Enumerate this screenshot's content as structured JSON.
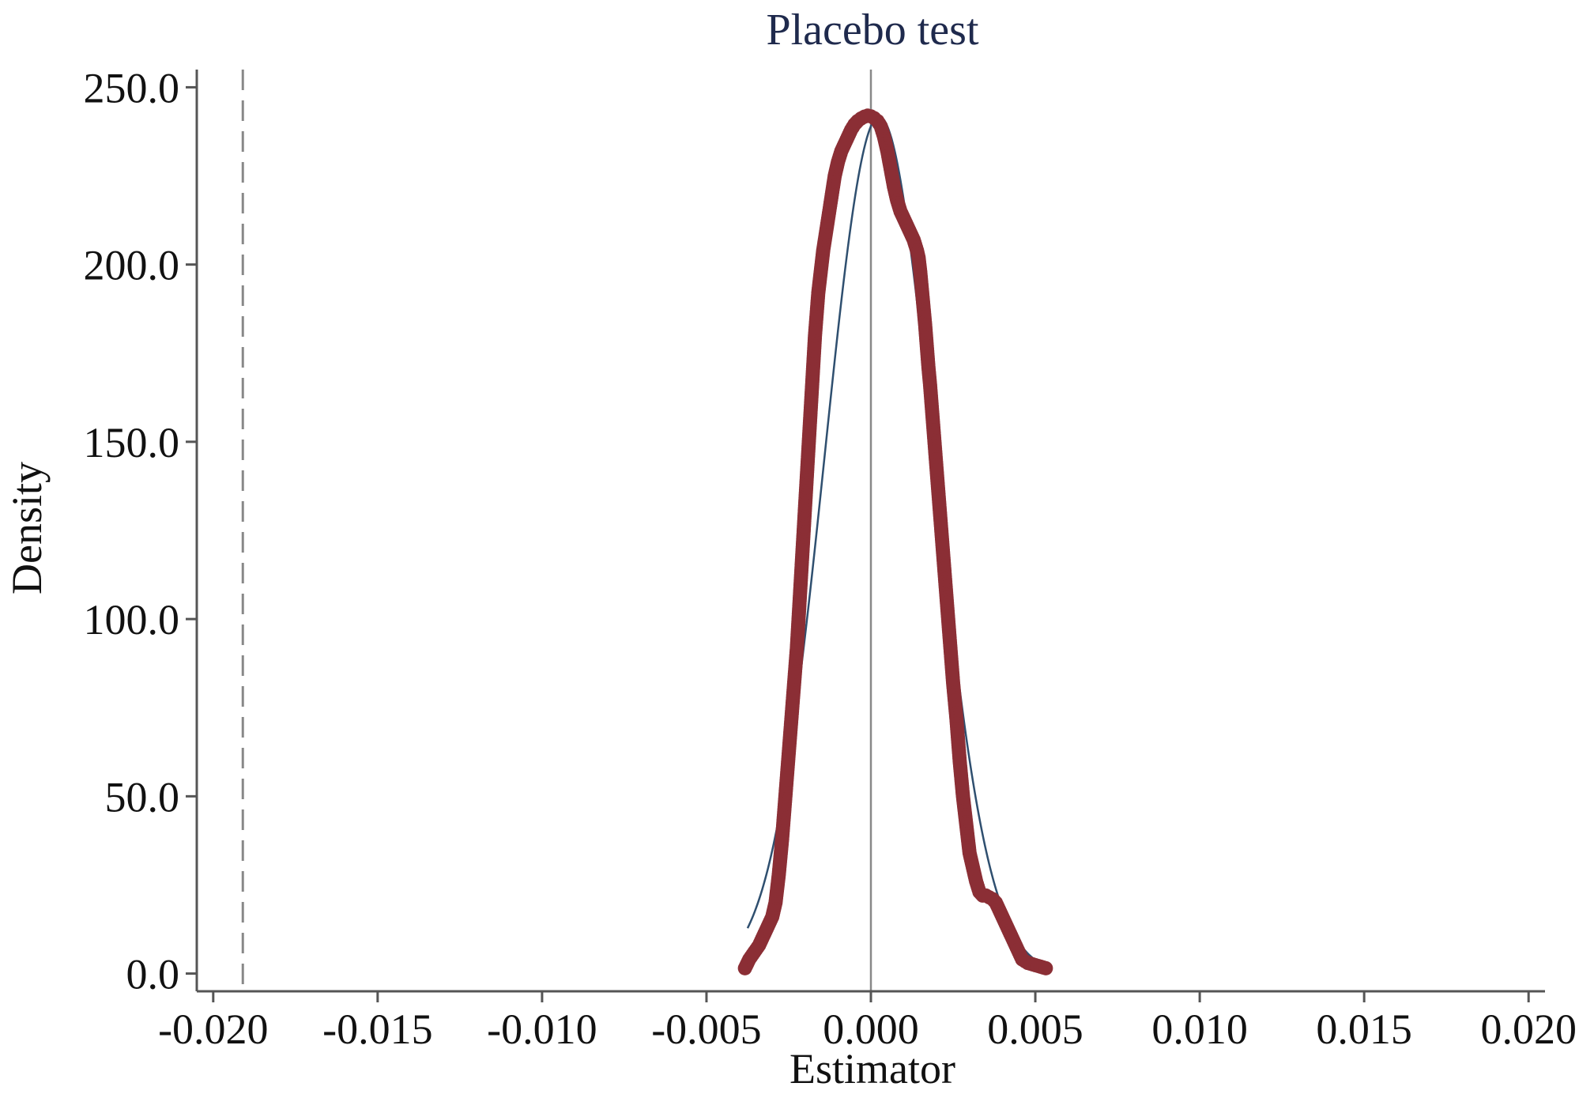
{
  "chart_data": {
    "type": "scatter",
    "title": "Placebo test",
    "xlabel": "Estimator",
    "ylabel": "Density",
    "xlim": [
      -0.0205,
      0.0205
    ],
    "ylim": [
      -5,
      255
    ],
    "x_ticks": [
      -0.02,
      -0.015,
      -0.01,
      -0.005,
      0.0,
      0.005,
      0.01,
      0.015,
      0.02
    ],
    "x_tick_labels": [
      "-0.020",
      "-0.015",
      "-0.010",
      "-0.005",
      "0.000",
      "0.005",
      "0.010",
      "0.015",
      "0.020"
    ],
    "y_ticks": [
      0,
      50,
      100,
      150,
      200,
      250
    ],
    "y_tick_labels": [
      "0.0",
      "50.0",
      "100.0",
      "150.0",
      "200.0",
      "250.0"
    ],
    "grid": false,
    "legend": "none",
    "reference_lines": [
      {
        "axis": "x",
        "value": 0.0,
        "style": "solid",
        "color": "#888888"
      },
      {
        "axis": "x",
        "value": -0.0191,
        "style": "dashed",
        "color": "#888888"
      }
    ],
    "series": [
      {
        "kind": "kernel-density-points",
        "color": "#8b2e35",
        "points": [
          [
            -0.00383,
            1.5
          ],
          [
            -0.0037,
            4
          ],
          [
            -0.00355,
            6
          ],
          [
            -0.0034,
            8
          ],
          [
            -0.0033,
            10
          ],
          [
            -0.0032,
            12
          ],
          [
            -0.0031,
            14
          ],
          [
            -0.003,
            16
          ],
          [
            -0.00295,
            18
          ],
          [
            -0.0029,
            20
          ],
          [
            -0.00285,
            24
          ],
          [
            -0.0028,
            28
          ],
          [
            -0.00275,
            33
          ],
          [
            -0.0027,
            38
          ],
          [
            -0.00265,
            44
          ],
          [
            -0.0026,
            50
          ],
          [
            -0.00255,
            56
          ],
          [
            -0.0025,
            62
          ],
          [
            -0.00245,
            68
          ],
          [
            -0.0024,
            74
          ],
          [
            -0.00235,
            80
          ],
          [
            -0.0023,
            86
          ],
          [
            -0.00225,
            92
          ],
          [
            -0.0022,
            100
          ],
          [
            -0.00215,
            108
          ],
          [
            -0.0021,
            116
          ],
          [
            -0.00205,
            124
          ],
          [
            -0.002,
            132
          ],
          [
            -0.00195,
            140
          ],
          [
            -0.0019,
            148
          ],
          [
            -0.00185,
            156
          ],
          [
            -0.0018,
            164
          ],
          [
            -0.00175,
            172
          ],
          [
            -0.0017,
            180
          ],
          [
            -0.00165,
            186
          ],
          [
            -0.0016,
            192
          ],
          [
            -0.00155,
            196
          ],
          [
            -0.0015,
            200
          ],
          [
            -0.00145,
            204
          ],
          [
            -0.0014,
            207
          ],
          [
            -0.00135,
            210
          ],
          [
            -0.0013,
            213
          ],
          [
            -0.00125,
            216
          ],
          [
            -0.0012,
            219
          ],
          [
            -0.00115,
            222
          ],
          [
            -0.0011,
            225
          ],
          [
            -0.00105,
            227
          ],
          [
            -0.001,
            229
          ],
          [
            -0.0009,
            232
          ],
          [
            -0.0008,
            234
          ],
          [
            -0.0007,
            236
          ],
          [
            -0.0006,
            238
          ],
          [
            -0.0005,
            239.5
          ],
          [
            -0.0004,
            240.5
          ],
          [
            -0.0003,
            241.2
          ],
          [
            -0.0002,
            241.7
          ],
          [
            -0.0001,
            242
          ],
          [
            0.0,
            241.8
          ],
          [
            0.0001,
            241.3
          ],
          [
            0.0002,
            240.5
          ],
          [
            0.0003,
            239
          ],
          [
            0.0004,
            236
          ],
          [
            0.0005,
            232
          ],
          [
            0.0006,
            227
          ],
          [
            0.0007,
            222
          ],
          [
            0.0008,
            218
          ],
          [
            0.0009,
            215
          ],
          [
            0.001,
            213
          ],
          [
            0.0011,
            211
          ],
          [
            0.0012,
            209
          ],
          [
            0.0013,
            207
          ],
          [
            0.0014,
            204
          ],
          [
            0.00145,
            202
          ],
          [
            0.0015,
            198
          ],
          [
            0.00155,
            193
          ],
          [
            0.0016,
            188
          ],
          [
            0.00165,
            183
          ],
          [
            0.0017,
            177
          ],
          [
            0.00175,
            171
          ],
          [
            0.0018,
            166
          ],
          [
            0.00185,
            160
          ],
          [
            0.0019,
            154
          ],
          [
            0.00195,
            148
          ],
          [
            0.002,
            142
          ],
          [
            0.00205,
            136
          ],
          [
            0.0021,
            130
          ],
          [
            0.00215,
            124
          ],
          [
            0.0022,
            118
          ],
          [
            0.00225,
            112
          ],
          [
            0.0023,
            106
          ],
          [
            0.00235,
            100
          ],
          [
            0.0024,
            94
          ],
          [
            0.00245,
            88
          ],
          [
            0.0025,
            82
          ],
          [
            0.00255,
            77
          ],
          [
            0.0026,
            72
          ],
          [
            0.00265,
            66
          ],
          [
            0.0027,
            60
          ],
          [
            0.00275,
            55
          ],
          [
            0.0028,
            50
          ],
          [
            0.00285,
            46
          ],
          [
            0.0029,
            42
          ],
          [
            0.00295,
            38
          ],
          [
            0.003,
            34
          ],
          [
            0.0031,
            30
          ],
          [
            0.0032,
            26
          ],
          [
            0.0033,
            23
          ],
          [
            0.0034,
            22
          ],
          [
            0.0035,
            22
          ],
          [
            0.0036,
            21.5
          ],
          [
            0.0037,
            21
          ],
          [
            0.0038,
            20
          ],
          [
            0.0039,
            18
          ],
          [
            0.004,
            16
          ],
          [
            0.0041,
            14
          ],
          [
            0.0042,
            12
          ],
          [
            0.0043,
            10
          ],
          [
            0.0044,
            8
          ],
          [
            0.0045,
            6
          ],
          [
            0.0046,
            4
          ],
          [
            0.00477,
            3
          ],
          [
            0.00532,
            1.5
          ]
        ]
      },
      {
        "kind": "normal-density-curve",
        "color": "#2f4f6f",
        "mean": 0.00025,
        "sd": 0.00165,
        "x_range": [
          -0.00375,
          0.0051
        ]
      }
    ]
  }
}
